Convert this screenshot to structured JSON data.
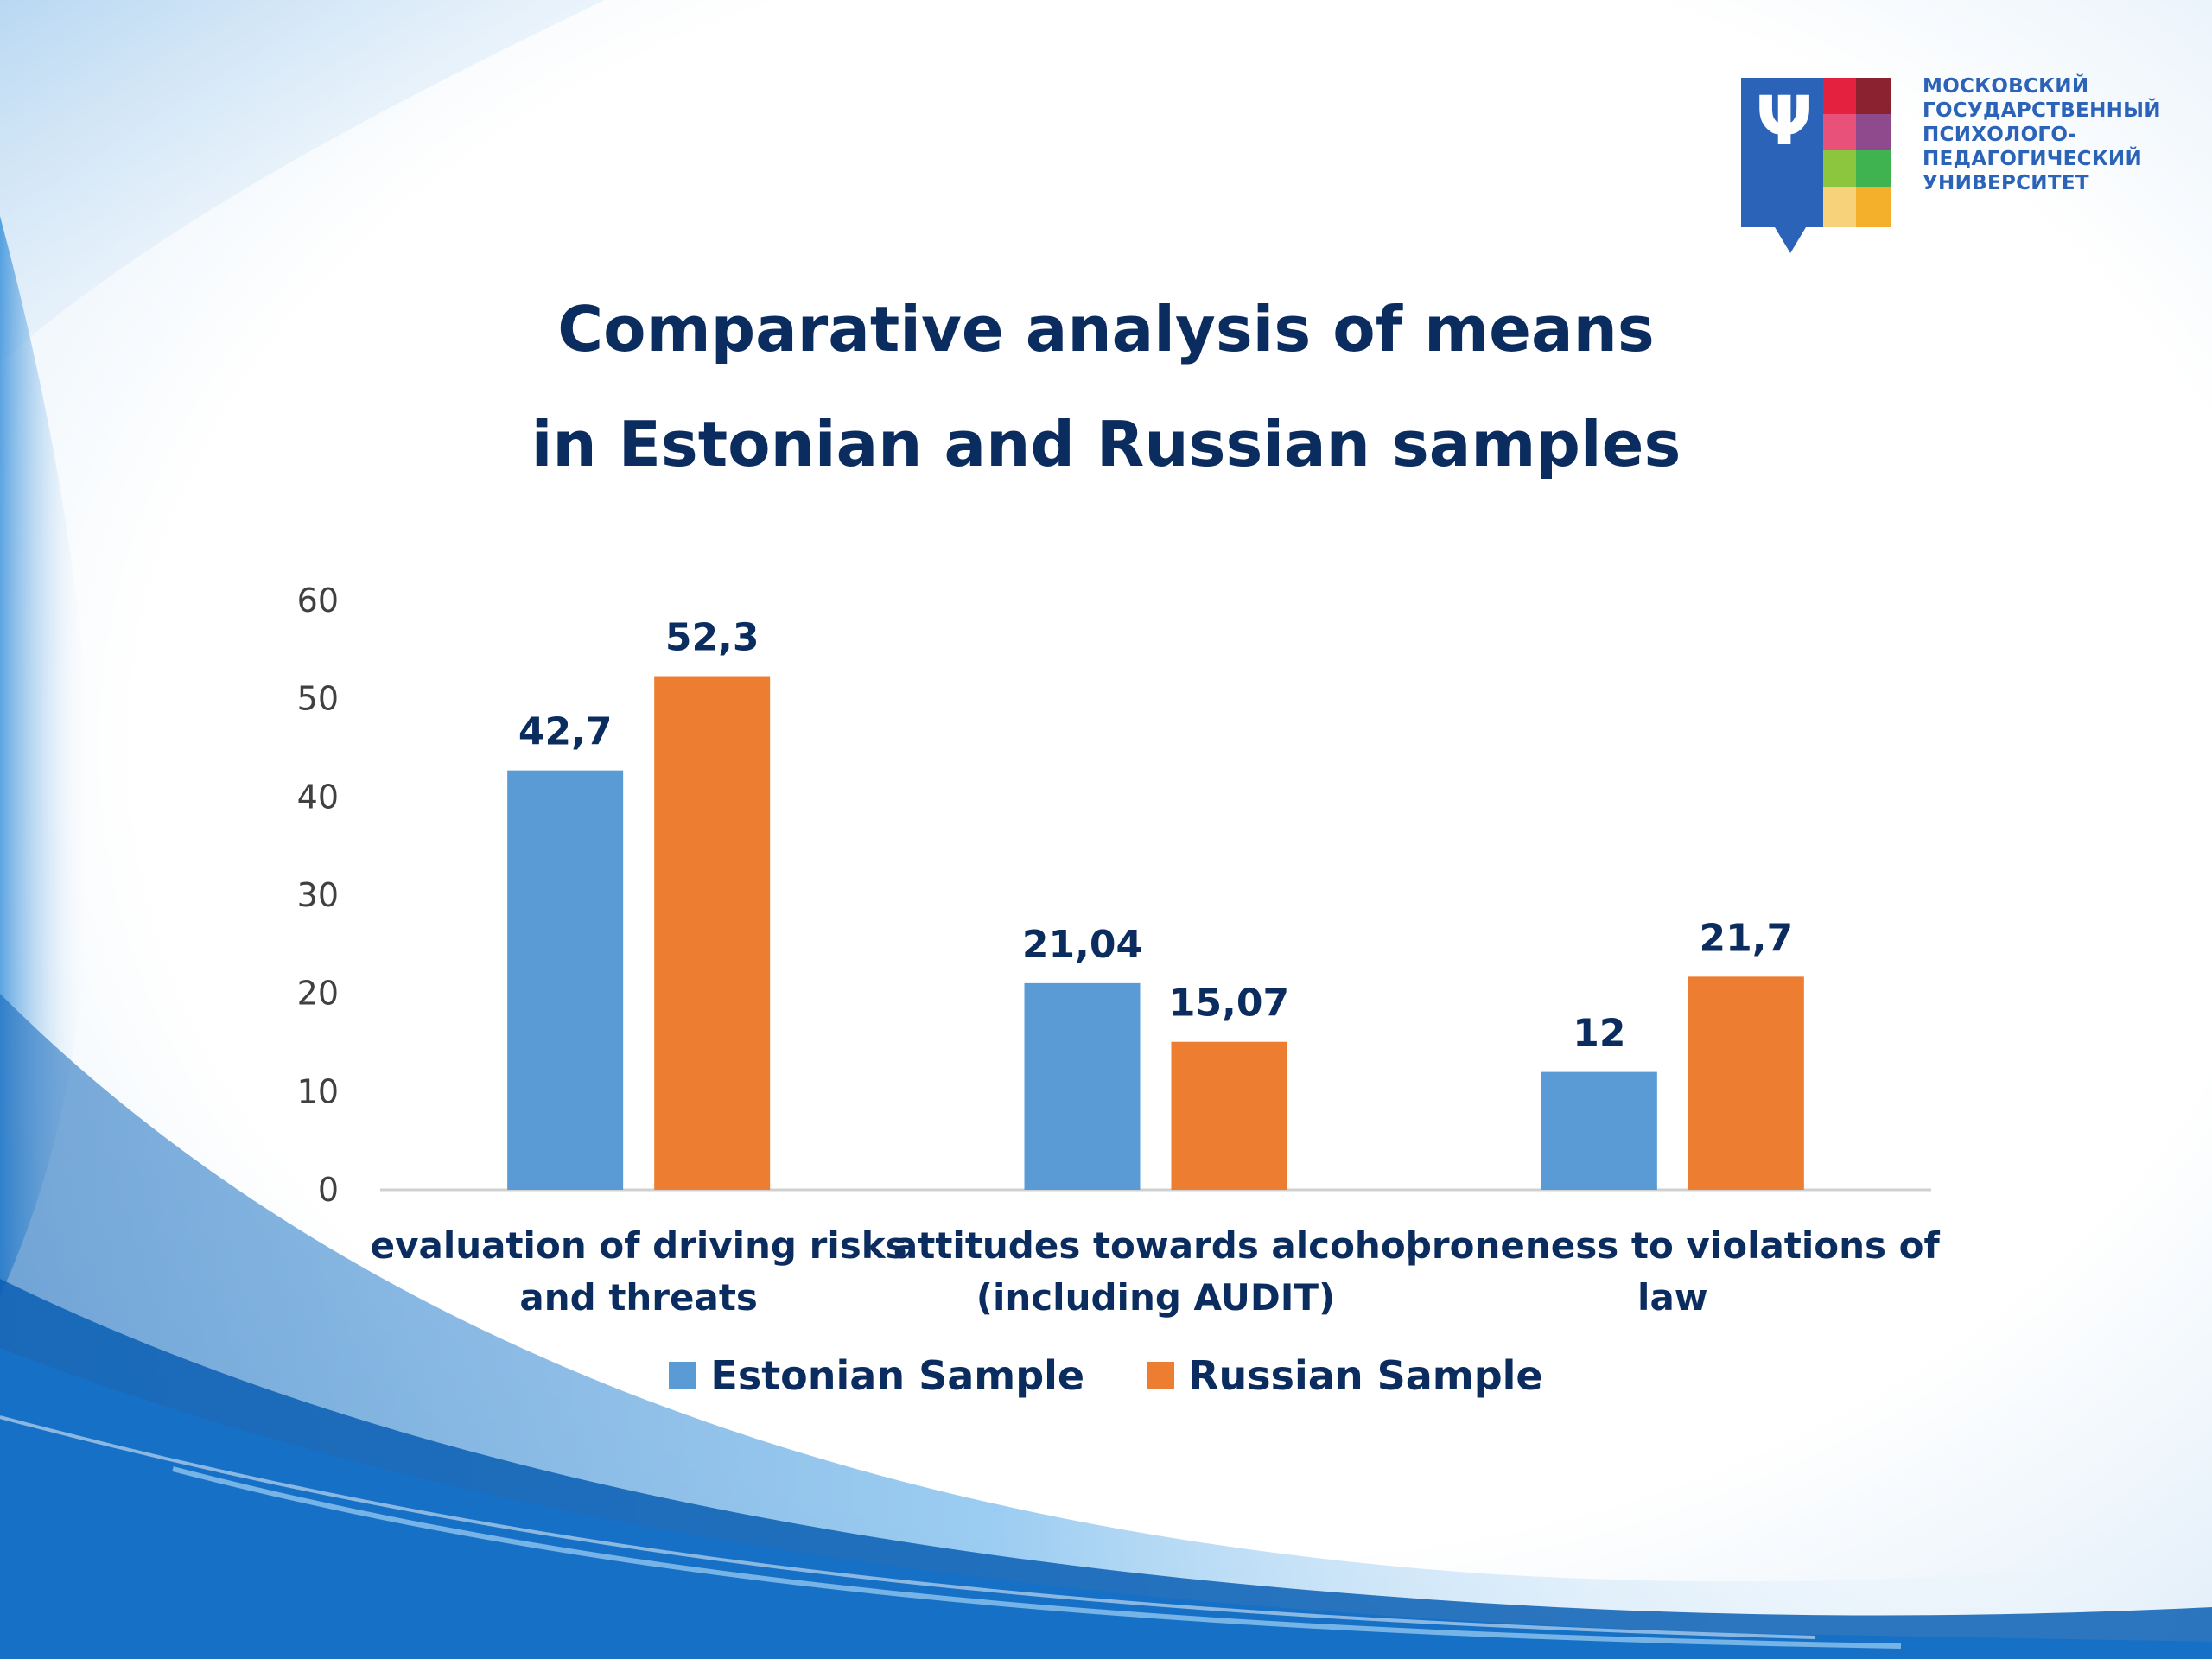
{
  "slide": {
    "title_line1": "Comparative analysis of means",
    "title_line2": "in Estonian and Russian samples"
  },
  "logo": {
    "lines": [
      "МОСКОВСКИЙ",
      "ГОСУДАРСТВЕННЫЙ",
      "ПСИХОЛОГО-",
      "ПЕДАГОГИЧЕСКИЙ",
      "УНИВЕРСИТЕТ"
    ],
    "mark": "Ψ",
    "icon": "university-logo-icon"
  },
  "colors": {
    "title": "#0b2c5e",
    "estonian": "#5b9bd5",
    "russian": "#ed7d31",
    "axis": "#d0d0d0",
    "background_wave": "#1e7fd0"
  },
  "chart_data": {
    "type": "bar",
    "title": "",
    "xlabel": "",
    "ylabel": "",
    "ylim": [
      0,
      60
    ],
    "yticks": [
      0,
      10,
      20,
      30,
      40,
      50,
      60
    ],
    "grid": false,
    "legend_position": "bottom",
    "categories": [
      [
        "evaluation of driving risks",
        "and threats"
      ],
      [
        "attitudes towards alcohol",
        "(including AUDIT)"
      ],
      [
        "proneness to violations of",
        "law"
      ]
    ],
    "series": [
      {
        "name": "Estonian Sample",
        "values": [
          42.7,
          21.04,
          12
        ],
        "labels": [
          "42,7",
          "21,04",
          "12"
        ],
        "color": "#5b9bd5"
      },
      {
        "name": "Russian Sample",
        "values": [
          52.3,
          15.07,
          21.7
        ],
        "labels": [
          "52,3",
          "15,07",
          "21,7"
        ],
        "color": "#ed7d31"
      }
    ]
  }
}
